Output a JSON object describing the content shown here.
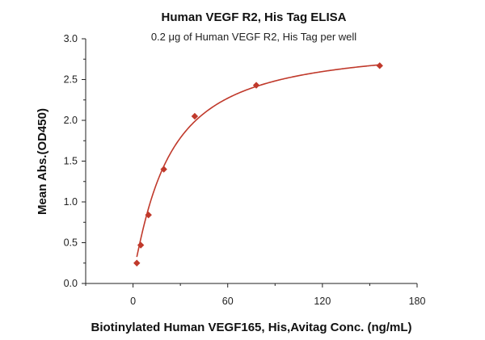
{
  "chart_data": {
    "type": "scatter",
    "title": "Human VEGF R2, His Tag ELISA",
    "subtitle": "0.2 μg of Human VEGF R2, His Tag per well",
    "xlabel": "Biotinylated Human VEGF165, His,Avitag Conc. (ng/mL)",
    "ylabel": "Mean Abs.(OD450)",
    "xlim": [
      -30,
      180
    ],
    "ylim": [
      0,
      3.0
    ],
    "xticks": [
      0,
      60,
      120,
      180
    ],
    "yticks": [
      0.0,
      0.5,
      1.0,
      1.5,
      2.0,
      2.5,
      3.0
    ],
    "xtick_labels": [
      "0",
      "60",
      "120",
      "180"
    ],
    "ytick_labels": [
      "0.0",
      "0.5",
      "1.0",
      "1.5",
      "2.0",
      "2.5",
      "3.0"
    ],
    "series": [
      {
        "name": "Human VEGF R2, His Tag",
        "color": "#c0392b",
        "marker": "diamond",
        "x": [
          2.4,
          4.9,
          9.8,
          19.5,
          39.1,
          78.1,
          156.3
        ],
        "y": [
          0.25,
          0.47,
          0.84,
          1.4,
          2.05,
          2.43,
          2.67
        ]
      }
    ],
    "fit": {
      "model": "saturation",
      "bottom": 0.12,
      "top": 2.95,
      "ec50": 22,
      "hill": 1.15,
      "x_range": [
        2.4,
        156.3
      ]
    }
  }
}
